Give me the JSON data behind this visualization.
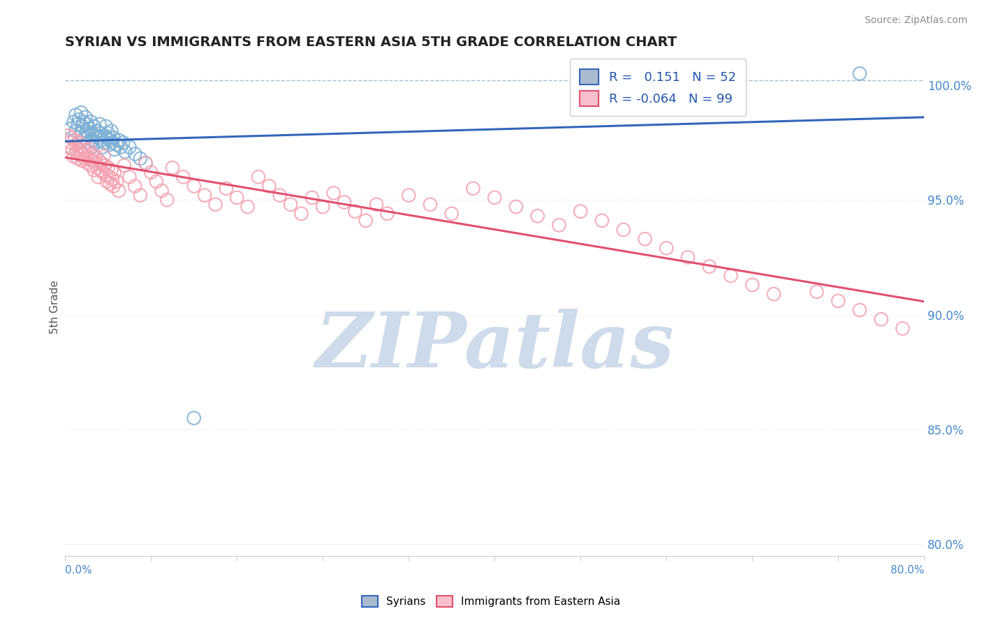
{
  "title": "SYRIAN VS IMMIGRANTS FROM EASTERN ASIA 5TH GRADE CORRELATION CHART",
  "source_text": "Source: ZipAtlas.com",
  "ylabel": "5th Grade",
  "yaxis_ticks": [
    "80.0%",
    "85.0%",
    "90.0%",
    "95.0%",
    "100.0%"
  ],
  "yaxis_values": [
    0.8,
    0.85,
    0.9,
    0.95,
    1.0
  ],
  "xlim": [
    0.0,
    0.8
  ],
  "ylim": [
    0.795,
    1.012
  ],
  "blue_color": "#7BAFD4",
  "pink_color": "#F4A0B0",
  "blue_line_color": "#3366BB",
  "pink_line_color": "#E05070",
  "blue_R": 0.151,
  "blue_N": 52,
  "pink_R": -0.064,
  "pink_N": 99,
  "blue_scatter_x": [
    0.005,
    0.008,
    0.01,
    0.01,
    0.012,
    0.013,
    0.015,
    0.015,
    0.016,
    0.017,
    0.018,
    0.019,
    0.02,
    0.02,
    0.021,
    0.022,
    0.023,
    0.024,
    0.025,
    0.025,
    0.026,
    0.027,
    0.028,
    0.029,
    0.03,
    0.031,
    0.032,
    0.033,
    0.034,
    0.035,
    0.036,
    0.037,
    0.038,
    0.039,
    0.04,
    0.041,
    0.042,
    0.043,
    0.044,
    0.045,
    0.046,
    0.048,
    0.05,
    0.052,
    0.054,
    0.056,
    0.06,
    0.065,
    0.07,
    0.075,
    0.12,
    0.74
  ],
  "blue_scatter_y": [
    0.981,
    0.984,
    0.987,
    0.98,
    0.983,
    0.985,
    0.979,
    0.988,
    0.982,
    0.984,
    0.977,
    0.986,
    0.98,
    0.983,
    0.975,
    0.978,
    0.981,
    0.984,
    0.979,
    0.973,
    0.976,
    0.982,
    0.978,
    0.975,
    0.98,
    0.977,
    0.983,
    0.979,
    0.976,
    0.973,
    0.975,
    0.978,
    0.982,
    0.977,
    0.979,
    0.974,
    0.976,
    0.98,
    0.975,
    0.977,
    0.972,
    0.974,
    0.976,
    0.973,
    0.975,
    0.971,
    0.973,
    0.97,
    0.968,
    0.966,
    0.855,
    1.005
  ],
  "pink_scatter_x": [
    0.003,
    0.004,
    0.005,
    0.006,
    0.007,
    0.008,
    0.009,
    0.01,
    0.011,
    0.012,
    0.013,
    0.014,
    0.015,
    0.016,
    0.017,
    0.018,
    0.019,
    0.02,
    0.021,
    0.022,
    0.023,
    0.024,
    0.025,
    0.026,
    0.027,
    0.028,
    0.029,
    0.03,
    0.031,
    0.032,
    0.033,
    0.034,
    0.035,
    0.036,
    0.037,
    0.038,
    0.039,
    0.04,
    0.041,
    0.042,
    0.043,
    0.044,
    0.045,
    0.046,
    0.048,
    0.05,
    0.055,
    0.06,
    0.065,
    0.07,
    0.075,
    0.08,
    0.085,
    0.09,
    0.095,
    0.1,
    0.11,
    0.12,
    0.13,
    0.14,
    0.15,
    0.16,
    0.17,
    0.18,
    0.19,
    0.2,
    0.21,
    0.22,
    0.23,
    0.24,
    0.25,
    0.26,
    0.27,
    0.28,
    0.29,
    0.3,
    0.32,
    0.34,
    0.36,
    0.38,
    0.4,
    0.42,
    0.44,
    0.46,
    0.48,
    0.5,
    0.52,
    0.54,
    0.56,
    0.58,
    0.6,
    0.62,
    0.64,
    0.66,
    0.7,
    0.72,
    0.74,
    0.76,
    0.78
  ],
  "pink_scatter_y": [
    0.978,
    0.973,
    0.975,
    0.977,
    0.972,
    0.969,
    0.976,
    0.974,
    0.971,
    0.968,
    0.975,
    0.972,
    0.97,
    0.967,
    0.973,
    0.968,
    0.971,
    0.969,
    0.966,
    0.972,
    0.968,
    0.965,
    0.97,
    0.967,
    0.963,
    0.969,
    0.966,
    0.964,
    0.96,
    0.967,
    0.963,
    0.966,
    0.962,
    0.969,
    0.965,
    0.961,
    0.958,
    0.964,
    0.96,
    0.957,
    0.963,
    0.959,
    0.956,
    0.962,
    0.958,
    0.954,
    0.965,
    0.96,
    0.956,
    0.952,
    0.966,
    0.962,
    0.958,
    0.954,
    0.95,
    0.964,
    0.96,
    0.956,
    0.952,
    0.948,
    0.955,
    0.951,
    0.947,
    0.96,
    0.956,
    0.952,
    0.948,
    0.944,
    0.951,
    0.947,
    0.953,
    0.949,
    0.945,
    0.941,
    0.948,
    0.944,
    0.952,
    0.948,
    0.944,
    0.955,
    0.951,
    0.947,
    0.943,
    0.939,
    0.945,
    0.941,
    0.937,
    0.933,
    0.929,
    0.925,
    0.921,
    0.917,
    0.913,
    0.909,
    0.91,
    0.906,
    0.902,
    0.898,
    0.894
  ],
  "watermark_text": "ZIPatlas",
  "watermark_color": "#C8D8E8",
  "legend_R_blue_val": "0.151",
  "legend_N_blue": "N = 52",
  "legend_R_pink": "-0.064",
  "legend_N_pink": "N = 99",
  "background_color": "#FFFFFF",
  "dotted_line_y": 1.002,
  "dashed_line_color": "#AABBCC"
}
